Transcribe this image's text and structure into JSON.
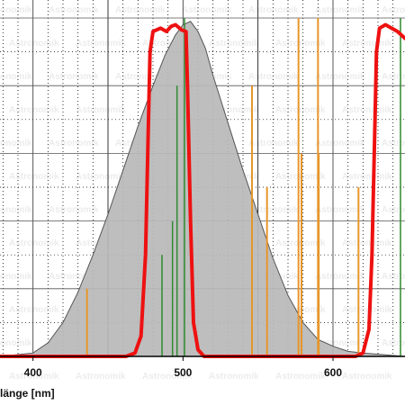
{
  "chart_data": {
    "type": "line",
    "xlabel": "länge [nm]",
    "x_ticks": [
      400,
      500,
      600
    ],
    "xlim": [
      378,
      648
    ],
    "ylim": [
      0,
      1.0
    ],
    "grid": true,
    "watermark": "Astronomik",
    "colors": {
      "sensitivity_fill": "#b8b8b8",
      "sensitivity_stroke": "#555555",
      "filter_curve": "#ee1111",
      "orange_lines": "#e8962a",
      "green_lines": "#2f8a2f",
      "gridline": "#000000"
    },
    "series": [
      {
        "kind": "area",
        "points": [
          [
            378,
            0
          ],
          [
            400,
            0.01
          ],
          [
            410,
            0.04
          ],
          [
            420,
            0.1
          ],
          [
            430,
            0.19
          ],
          [
            440,
            0.3
          ],
          [
            450,
            0.42
          ],
          [
            460,
            0.55
          ],
          [
            470,
            0.68
          ],
          [
            480,
            0.8
          ],
          [
            488,
            0.89
          ],
          [
            495,
            0.95
          ],
          [
            500,
            0.98
          ],
          [
            505,
            0.99
          ],
          [
            510,
            0.96
          ],
          [
            515,
            0.91
          ],
          [
            520,
            0.83
          ],
          [
            530,
            0.69
          ],
          [
            540,
            0.55
          ],
          [
            550,
            0.42
          ],
          [
            560,
            0.29
          ],
          [
            570,
            0.18
          ],
          [
            580,
            0.1
          ],
          [
            590,
            0.05
          ],
          [
            600,
            0.03
          ],
          [
            610,
            0.015
          ],
          [
            620,
            0.01
          ],
          [
            648,
            0
          ]
        ]
      },
      {
        "kind": "line",
        "points": [
          [
            378,
            0
          ],
          [
            462,
            0
          ],
          [
            468,
            0.01
          ],
          [
            472,
            0.06
          ],
          [
            475,
            0.3
          ],
          [
            477,
            0.7
          ],
          [
            478,
            0.9
          ],
          [
            480,
            0.96
          ],
          [
            485,
            0.97
          ],
          [
            489,
            0.96
          ],
          [
            492,
            0.975
          ],
          [
            495,
            0.98
          ],
          [
            499,
            0.965
          ],
          [
            502,
            0.96
          ],
          [
            503,
            0.8
          ],
          [
            505,
            0.4
          ],
          [
            507,
            0.1
          ],
          [
            510,
            0.02
          ],
          [
            514,
            0
          ],
          [
            615,
            0
          ],
          [
            620,
            0.01
          ],
          [
            624,
            0.08
          ],
          [
            626,
            0.3
          ],
          [
            628,
            0.7
          ],
          [
            629,
            0.9
          ],
          [
            631,
            0.97
          ],
          [
            635,
            0.98
          ],
          [
            639,
            0.97
          ],
          [
            643,
            0.96
          ],
          [
            648,
            0.94
          ]
        ]
      }
    ],
    "emission_lines": [
      {
        "color": "orange",
        "x": 436,
        "height": 0.2
      },
      {
        "color": "orange",
        "x": 546,
        "height": 0.8
      },
      {
        "color": "orange",
        "x": 556,
        "height": 0.5
      },
      {
        "color": "orange",
        "x": 577,
        "height": 1.0
      },
      {
        "color": "orange",
        "x": 579,
        "height": 0.6
      },
      {
        "color": "orange",
        "x": 590,
        "height": 1.0
      },
      {
        "color": "orange",
        "x": 590.5,
        "height": 0.6
      },
      {
        "color": "orange",
        "x": 617,
        "height": 0.5
      },
      {
        "color": "green",
        "x": 486,
        "height": 0.3
      },
      {
        "color": "green",
        "x": 493,
        "height": 0.4
      },
      {
        "color": "green",
        "x": 496,
        "height": 0.8
      },
      {
        "color": "green",
        "x": 501,
        "height": 1.0
      },
      {
        "color": "green",
        "x": 645,
        "height": 1.0
      }
    ]
  }
}
